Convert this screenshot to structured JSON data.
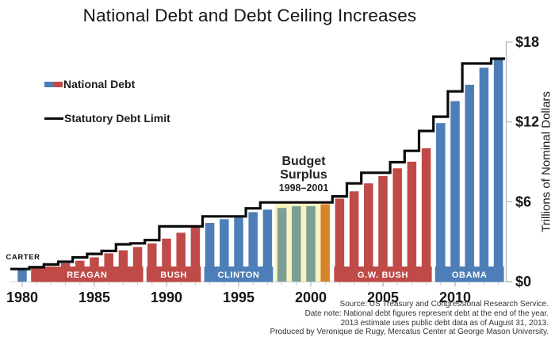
{
  "title": "National Debt and Debt Ceiling Increases",
  "legend": {
    "items": [
      {
        "label": "National Debt",
        "swatch": "split-blue-red"
      },
      {
        "label": "Statutory Debt Limit",
        "swatch": "black-line"
      }
    ]
  },
  "annotation": {
    "line1": "Budget",
    "line2": "Surplus",
    "line3": "1998–2001"
  },
  "y_axis_title": "Trillions of Nominal Dollars",
  "source_lines": [
    "Source: US Treasury and Congressional Research Service.",
    "Date note: National debt figures represent debt at the end of the year.",
    "2013 estimate uses public debt data as of August 31, 2013.",
    "Produced by Veronique de Rugy, Mercatus Center at George Mason University."
  ],
  "chart_data": {
    "type": "bar",
    "title": "National Debt and Debt Ceiling Increases",
    "ylabel": "Trillions of Nominal Dollars",
    "xlabel": "",
    "ylim": [
      0,
      18
    ],
    "grid": false,
    "legend_position": "upper-left",
    "years": [
      1980,
      1981,
      1982,
      1983,
      1984,
      1985,
      1986,
      1987,
      1988,
      1989,
      1990,
      1991,
      1992,
      1993,
      1994,
      1995,
      1996,
      1997,
      1998,
      1999,
      2000,
      2001,
      2002,
      2003,
      2004,
      2005,
      2006,
      2007,
      2008,
      2009,
      2010,
      2011,
      2012,
      2013
    ],
    "series": [
      {
        "name": "National Debt",
        "type": "bar",
        "values": [
          0.91,
          1.0,
          1.14,
          1.38,
          1.57,
          1.82,
          2.12,
          2.35,
          2.6,
          2.87,
          3.23,
          3.67,
          4.06,
          4.41,
          4.69,
          4.97,
          5.22,
          5.41,
          5.53,
          5.66,
          5.67,
          5.81,
          6.23,
          6.78,
          7.38,
          7.93,
          8.51,
          9.01,
          10.02,
          11.91,
          13.56,
          14.79,
          16.07,
          16.74
        ]
      },
      {
        "name": "Statutory Debt Limit",
        "type": "step_line",
        "values": [
          0.94,
          1.08,
          1.29,
          1.49,
          1.82,
          2.08,
          2.3,
          2.8,
          2.87,
          3.12,
          4.15,
          4.15,
          4.15,
          4.9,
          4.9,
          4.9,
          5.5,
          5.95,
          5.95,
          5.95,
          5.95,
          5.95,
          6.4,
          7.38,
          8.18,
          8.18,
          8.97,
          9.82,
          11.32,
          12.39,
          14.29,
          16.39,
          16.39,
          16.75
        ]
      }
    ],
    "bar_color_names": [
      "blue",
      "red",
      "red",
      "red",
      "red",
      "red",
      "red",
      "red",
      "red",
      "red",
      "red",
      "red",
      "red",
      "blue",
      "blue",
      "blue",
      "blue",
      "blue",
      "teal",
      "teal",
      "teal",
      "orange",
      "red",
      "red",
      "red",
      "red",
      "red",
      "red",
      "red",
      "blue",
      "blue",
      "blue",
      "blue",
      "blue"
    ],
    "palette": {
      "blue": "#4D7EB8",
      "red": "#BF4A47",
      "teal": "#7C9E94",
      "orange": "#D78428",
      "surplus_bg": "#F7F4C1",
      "line": "#0b0b0b"
    },
    "eras": [
      {
        "label": "CARTER",
        "years": [
          1980,
          1980
        ],
        "color": "blue",
        "band": null,
        "label_style": "above-black"
      },
      {
        "label": "REAGAN",
        "years": [
          1981,
          1988
        ],
        "color": "red",
        "band": [
          1981,
          1988
        ]
      },
      {
        "label": "BUSH",
        "years": [
          1989,
          1992
        ],
        "color": "red",
        "band": [
          1989,
          1992
        ]
      },
      {
        "label": "CLINTON",
        "years": [
          1993,
          2000
        ],
        "color": "blue",
        "band": [
          1993,
          1997
        ]
      },
      {
        "label": "G.W. BUSH",
        "years": [
          2001,
          2008
        ],
        "color": "red",
        "band": [
          2002,
          2008
        ]
      },
      {
        "label": "OBAMA",
        "years": [
          2009,
          2013
        ],
        "color": "blue",
        "band": [
          2009,
          2013
        ]
      }
    ],
    "surplus": {
      "label": "Budget Surplus",
      "range": "1998–2001",
      "highlight_years": [
        1998,
        2000
      ],
      "transition_year": 2001,
      "bg_top": 5.95
    },
    "x_ticks": [
      1980,
      1985,
      1990,
      1995,
      2000,
      2005,
      2010
    ],
    "y_ticks": [
      {
        "value": 0,
        "label": "$0"
      },
      {
        "value": 6,
        "label": "$6"
      },
      {
        "value": 12,
        "label": "$12"
      },
      {
        "value": 18,
        "label": "$18"
      }
    ]
  }
}
